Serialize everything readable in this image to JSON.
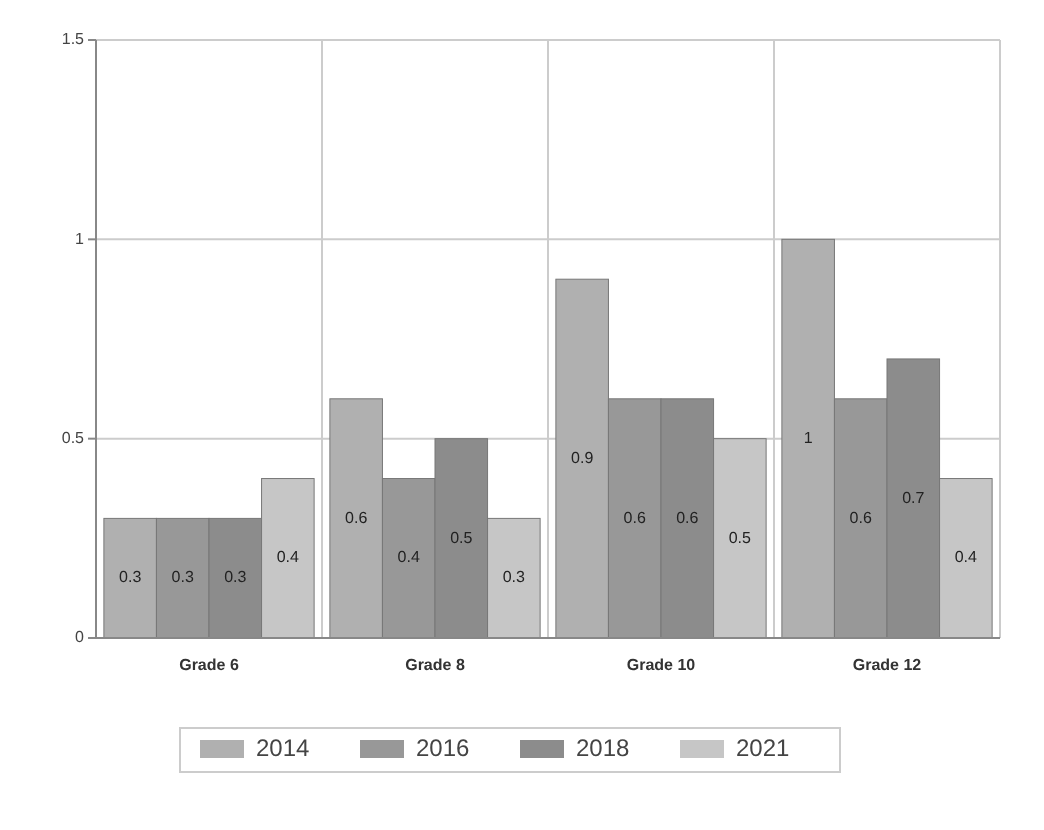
{
  "chart_data": {
    "type": "bar",
    "categories": [
      "Grade 6",
      "Grade 8",
      "Grade 10",
      "Grade 12"
    ],
    "series": [
      {
        "name": "2014",
        "color": "#b0b0b0",
        "values": [
          0.3,
          0.6,
          0.9,
          1
        ]
      },
      {
        "name": "2016",
        "color": "#989898",
        "values": [
          0.3,
          0.4,
          0.6,
          0.6
        ]
      },
      {
        "name": "2018",
        "color": "#8c8c8c",
        "values": [
          0.3,
          0.5,
          0.6,
          0.7
        ]
      },
      {
        "name": "2021",
        "color": "#c6c6c6",
        "values": [
          0.4,
          0.3,
          0.5,
          0.4
        ]
      }
    ],
    "ylim": [
      0,
      1.5
    ],
    "yticks": [
      0,
      0.5,
      1,
      1.5
    ],
    "grid": true,
    "legend": "bottom",
    "data_labels": true
  }
}
